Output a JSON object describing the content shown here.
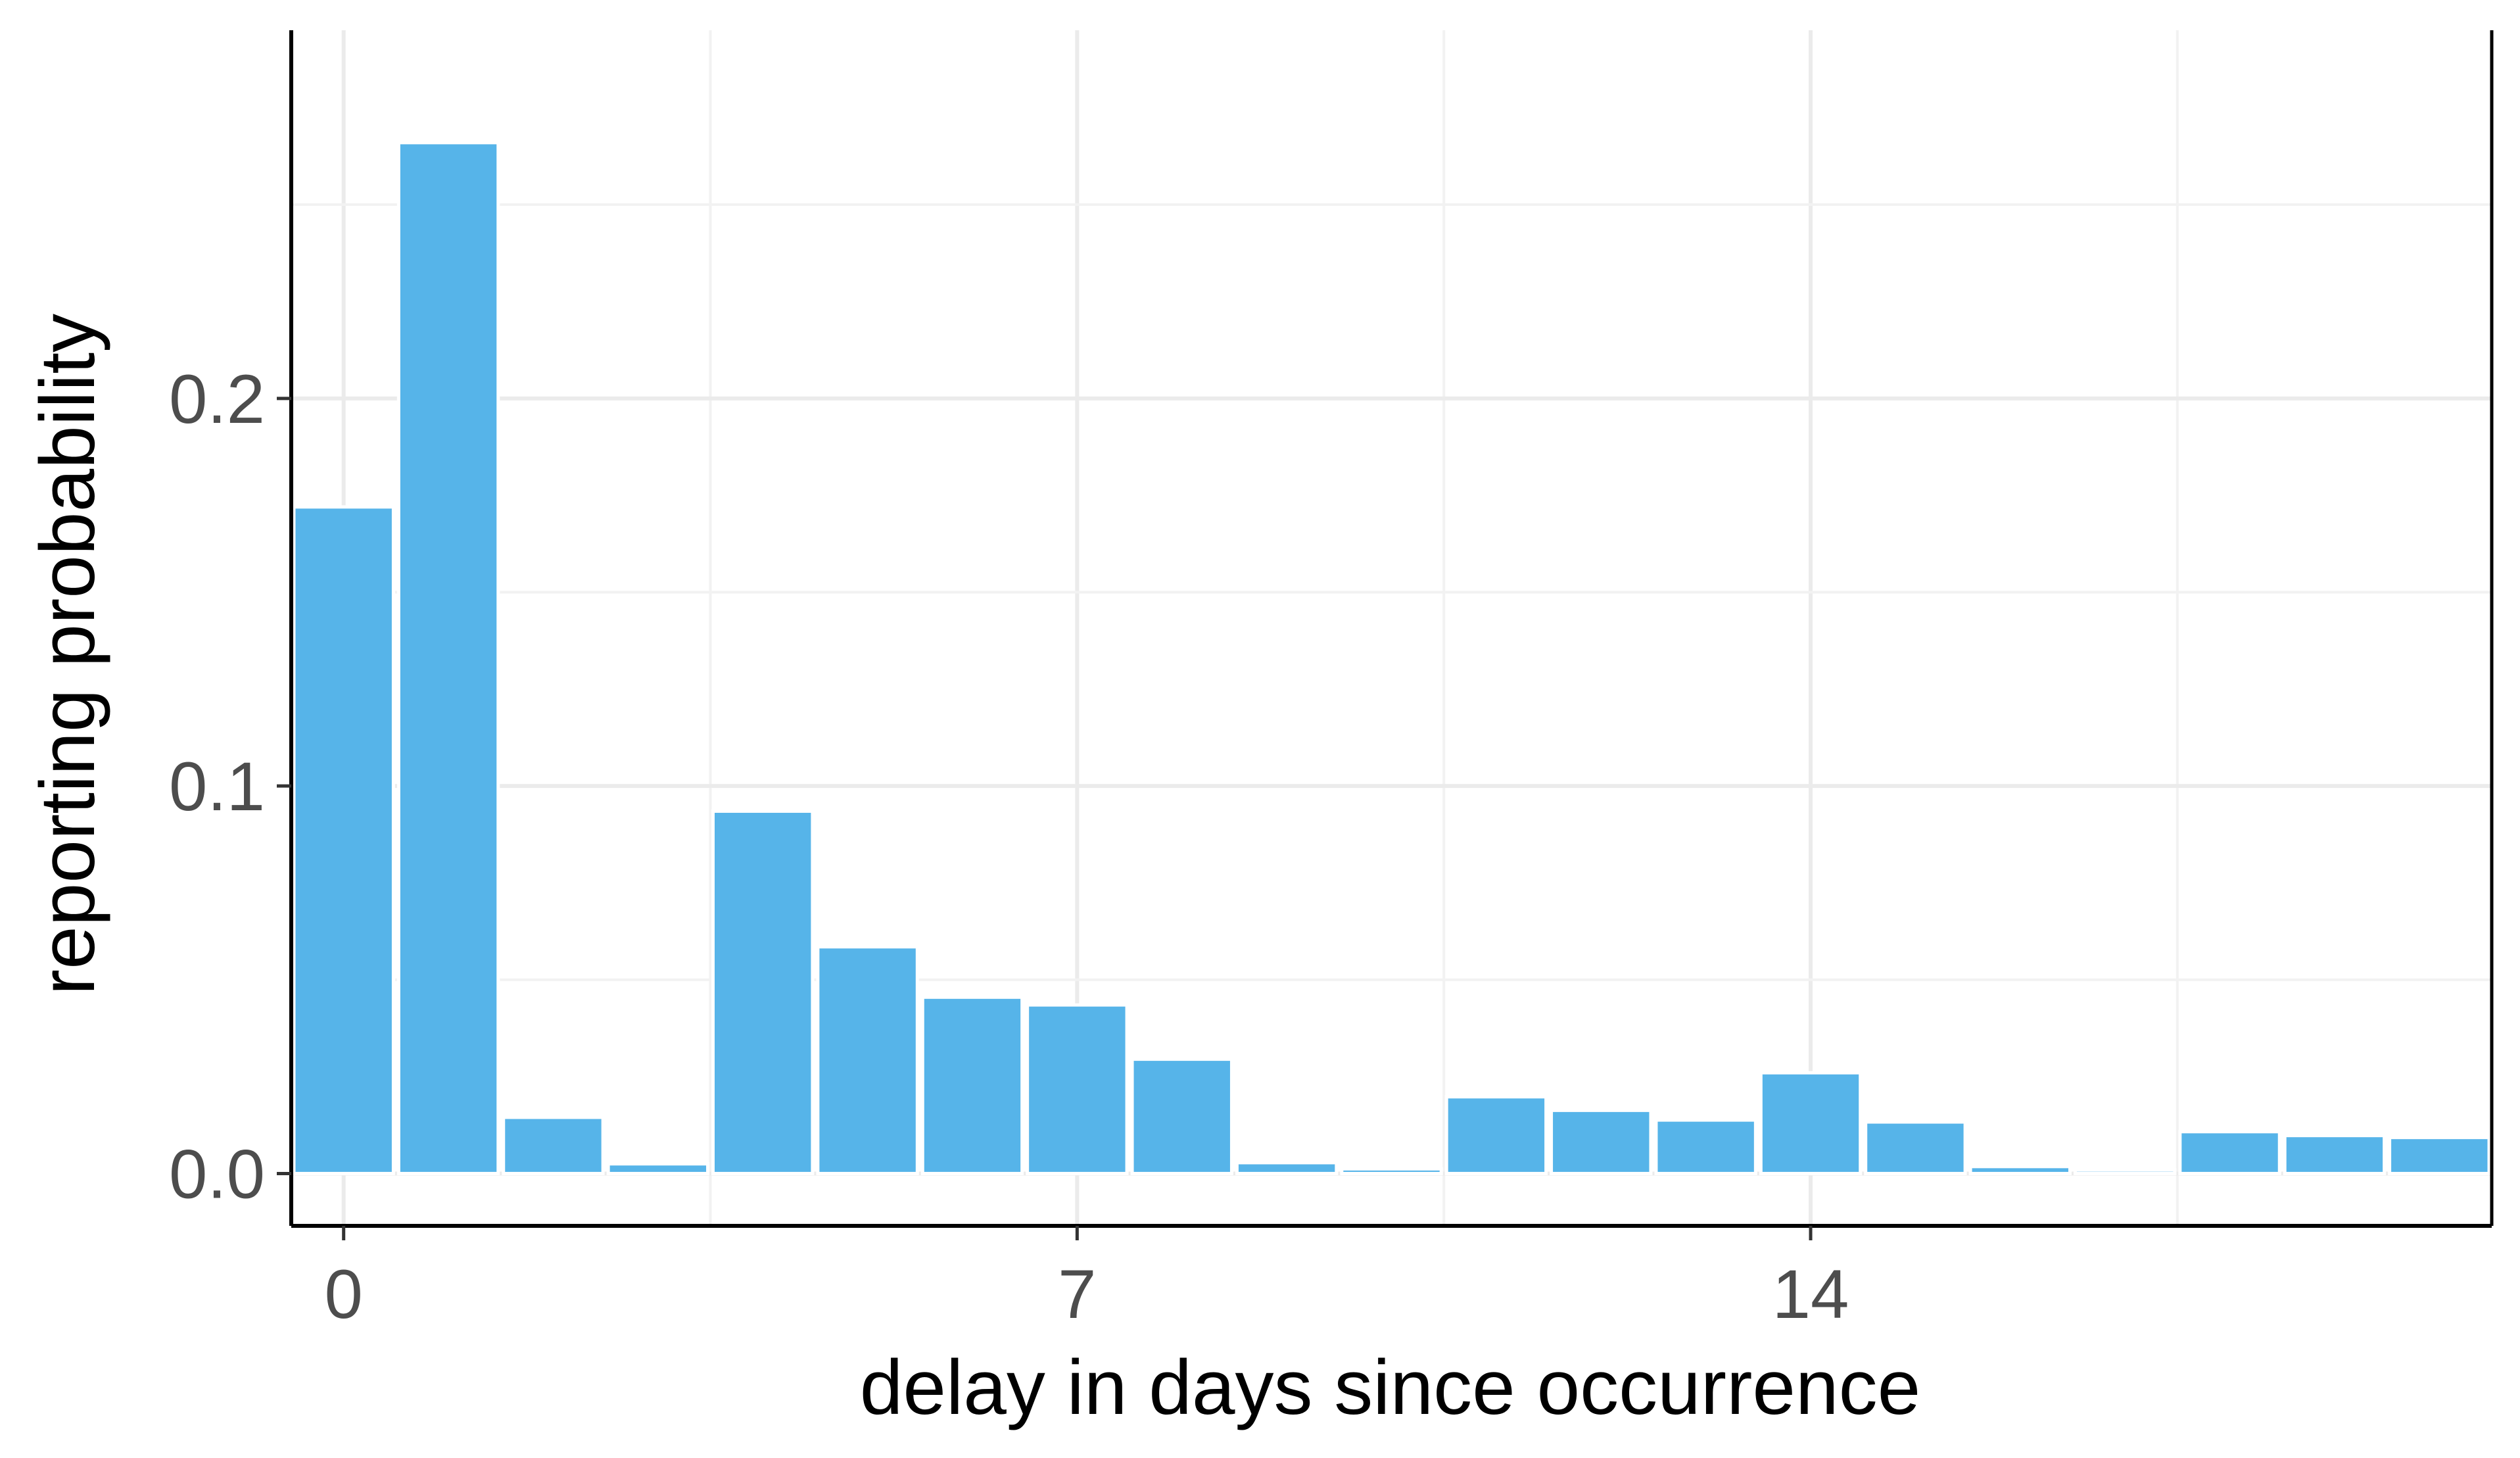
{
  "chart_data": {
    "type": "bar",
    "title": "",
    "xlabel": "delay in days since occurrence",
    "ylabel": "reporting probability",
    "x": [
      0,
      1,
      2,
      3,
      4,
      5,
      6,
      7,
      8,
      9,
      10,
      11,
      12,
      13,
      14,
      15,
      16,
      17,
      18,
      19,
      20
    ],
    "values": [
      0.172,
      0.266,
      0.0145,
      0.0025,
      0.0935,
      0.0585,
      0.0455,
      0.0435,
      0.0295,
      0.0028,
      0.0012,
      0.0198,
      0.0163,
      0.0138,
      0.026,
      0.0133,
      0.0018,
      0.0009,
      0.0108,
      0.0098,
      0.0093
    ],
    "xlim": [
      -0.5,
      20.5
    ],
    "ylim": [
      -0.0135,
      0.295
    ],
    "x_ticks": [
      0,
      7,
      14
    ],
    "x_tick_labels": [
      "0",
      "7",
      "14"
    ],
    "y_ticks": [
      0.0,
      0.1,
      0.2
    ],
    "y_tick_labels": [
      "0.0",
      "0.1",
      "0.2"
    ],
    "grid": true,
    "legend": "none",
    "colors": {
      "bar": "#56b4e9",
      "bar_outline": "#ffffff",
      "grid_major": "#ebebeb",
      "grid_minor": "#f2f2f2",
      "panel_border": "#000000",
      "tick_label": "#4d4d4d",
      "axis_title": "#000000"
    }
  }
}
